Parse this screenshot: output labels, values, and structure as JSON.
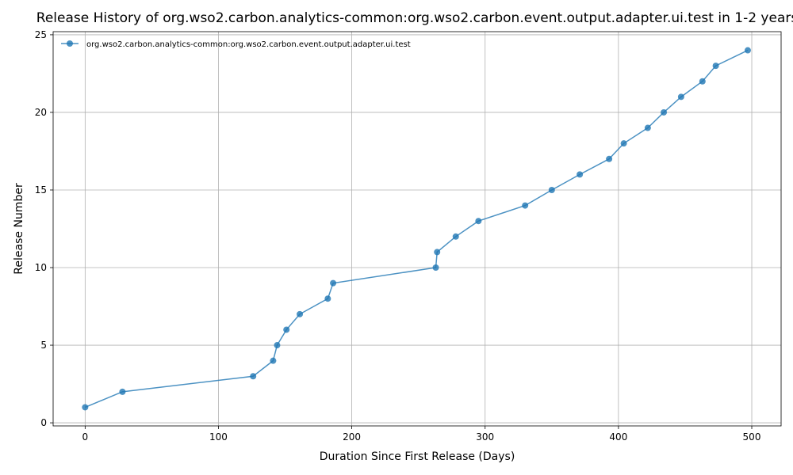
{
  "chart_data": {
    "type": "line",
    "title": "Release History of org.wso2.carbon.analytics-common:org.wso2.carbon.event.output.adapter.ui.test in 1-2 years",
    "xlabel": "Duration Since First Release (Days)",
    "ylabel": "Release Number",
    "xlim": [
      -24,
      522
    ],
    "ylim": [
      -0.2,
      25.2
    ],
    "xticks": [
      0,
      100,
      200,
      300,
      400,
      500
    ],
    "yticks": [
      0,
      5,
      10,
      15,
      20,
      25
    ],
    "grid": true,
    "legend_position": "top-left",
    "series": [
      {
        "name": "org.wso2.carbon.analytics-common:org.wso2.carbon.event.output.adapter.ui.test",
        "color": "#1f77b4",
        "marker": "circle",
        "x": [
          0,
          28,
          126,
          141,
          144,
          151,
          161,
          182,
          186,
          263,
          264,
          278,
          295,
          330,
          350,
          371,
          393,
          404,
          422,
          434,
          447,
          463,
          473,
          497
        ],
        "y": [
          1,
          2,
          3,
          4,
          5,
          6,
          7,
          8,
          9,
          10,
          11,
          12,
          13,
          14,
          15,
          16,
          17,
          18,
          19,
          20,
          21,
          22,
          23,
          24
        ]
      }
    ]
  }
}
